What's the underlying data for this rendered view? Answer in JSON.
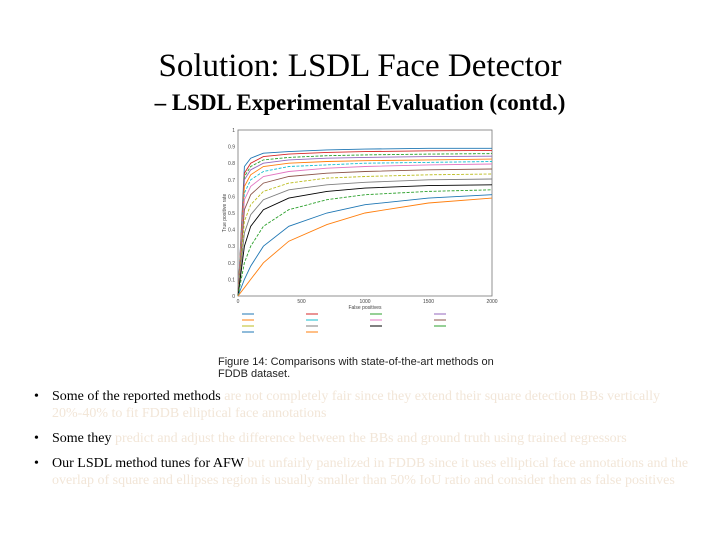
{
  "slide": {
    "title": "Solution: LSDL Face Detector",
    "subtitle": "– LSDL Experimental Evaluation (contd.)"
  },
  "figure": {
    "caption": "Figure 14: Comparisons with state-of-the-art methods on FDDB dataset."
  },
  "chart_data": {
    "type": "line",
    "title": "",
    "xlabel": "False positives",
    "ylabel": "True positive rate",
    "xlim": [
      0,
      2000
    ],
    "ylim": [
      0,
      1
    ],
    "x_ticks": [
      "0",
      "500",
      "1000",
      "1500",
      "2000"
    ],
    "y_ticks": [
      "0",
      "0.1",
      "0.2",
      "0.3",
      "0.4",
      "0.5",
      "0.6",
      "0.7",
      "0.8",
      "0.9",
      "1"
    ],
    "x": [
      0,
      50,
      100,
      200,
      400,
      700,
      1000,
      1500,
      2000
    ],
    "series": [
      {
        "color": "#1f77b4",
        "values": [
          0,
          0.78,
          0.83,
          0.86,
          0.87,
          0.88,
          0.885,
          0.89,
          0.89
        ]
      },
      {
        "color": "#d62728",
        "values": [
          0,
          0.74,
          0.8,
          0.84,
          0.855,
          0.865,
          0.87,
          0.875,
          0.877
        ]
      },
      {
        "color": "#2ca02c",
        "values": [
          0,
          0.72,
          0.78,
          0.82,
          0.835,
          0.845,
          0.85,
          0.855,
          0.858
        ]
      },
      {
        "color": "#9467bd",
        "values": [
          0,
          0.7,
          0.76,
          0.8,
          0.82,
          0.83,
          0.835,
          0.84,
          0.842
        ]
      },
      {
        "color": "#ff7f0e",
        "values": [
          0,
          0.66,
          0.73,
          0.78,
          0.8,
          0.81,
          0.815,
          0.82,
          0.825
        ]
      },
      {
        "color": "#17becf",
        "values": [
          0,
          0.62,
          0.7,
          0.75,
          0.78,
          0.79,
          0.8,
          0.805,
          0.81
        ]
      },
      {
        "color": "#e377c2",
        "values": [
          0,
          0.58,
          0.66,
          0.72,
          0.75,
          0.77,
          0.78,
          0.79,
          0.795
        ]
      },
      {
        "color": "#8c564b",
        "values": [
          0,
          0.52,
          0.61,
          0.68,
          0.72,
          0.74,
          0.75,
          0.76,
          0.765
        ]
      },
      {
        "color": "#bcbd22",
        "values": [
          0,
          0.45,
          0.55,
          0.63,
          0.68,
          0.71,
          0.72,
          0.73,
          0.735
        ]
      },
      {
        "color": "#7f7f7f",
        "values": [
          0,
          0.38,
          0.49,
          0.58,
          0.64,
          0.67,
          0.685,
          0.7,
          0.705
        ]
      },
      {
        "color": "#000000",
        "values": [
          0,
          0.3,
          0.42,
          0.52,
          0.59,
          0.63,
          0.65,
          0.665,
          0.67
        ]
      },
      {
        "color": "#2ca02c",
        "values": [
          0,
          0.2,
          0.3,
          0.42,
          0.52,
          0.58,
          0.61,
          0.63,
          0.64
        ]
      },
      {
        "color": "#1f77b4",
        "values": [
          0,
          0.1,
          0.18,
          0.3,
          0.42,
          0.5,
          0.55,
          0.59,
          0.61
        ]
      },
      {
        "color": "#ff7f0e",
        "values": [
          0,
          0.05,
          0.1,
          0.2,
          0.33,
          0.43,
          0.5,
          0.56,
          0.59
        ]
      }
    ]
  },
  "bullets": [
    {
      "parts": [
        {
          "t": "Some of the reported methods ",
          "muted": false
        },
        {
          "t": "are not completely fair since they extend their square detection BBs vertically 20%-40% to fit FDDB elliptical  face annotations",
          "muted": true
        }
      ]
    },
    {
      "parts": [
        {
          "t": "Some they ",
          "muted": false
        },
        {
          "t": "predict and adjust the difference between the BBs and ground truth using trained regressors",
          "muted": true
        }
      ]
    },
    {
      "parts": [
        {
          "t": "Our LSDL method tunes for AFW ",
          "muted": false
        },
        {
          "t": "but unfairly panelized in FDDB since it uses elliptical face annotations and the overlap of square and ellipses region is usually smaller than 50% IoU ratio and consider them as false positives",
          "muted": true
        }
      ]
    }
  ]
}
